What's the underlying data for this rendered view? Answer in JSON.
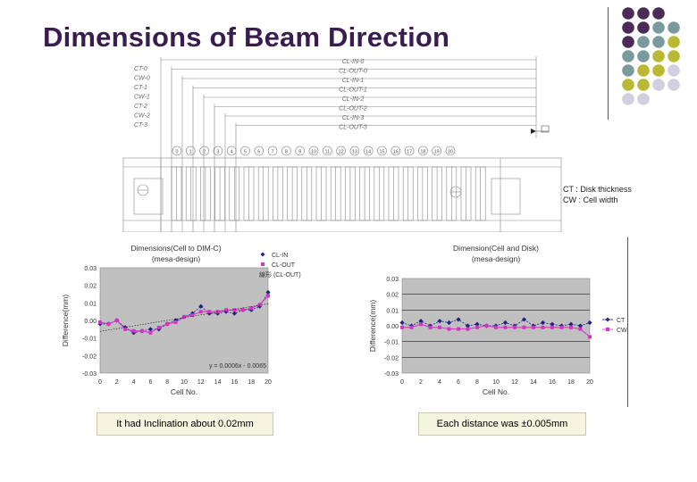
{
  "slide": {
    "title": "Dimensions of Beam Direction",
    "legend_note_1": "CT  : Disk thickness",
    "legend_note_2": "CW : Cell width",
    "caption_left": "It had Inclination about 0.02mm",
    "caption_right": "Each distance was ±0.005mm"
  },
  "drawing": {
    "left_labels": [
      "CT-0",
      "CW-0",
      "CT-1",
      "CW-1",
      "CT-2",
      "CW-2",
      "CT-3"
    ],
    "center_labels": [
      "CL-IN-0",
      "CL-OUT-0",
      "CL-IN-1",
      "CL-OUT-1",
      "CL-IN-2",
      "CL-OUT-2",
      "CL-IN-3",
      "CL-OUT-3"
    ],
    "cell_numbers": [
      "0",
      "1",
      "2",
      "3",
      "4",
      "5",
      "6",
      "7",
      "8",
      "9",
      "10",
      "11",
      "12",
      "13",
      "14",
      "15",
      "16",
      "17",
      "18",
      "19",
      "20"
    ]
  },
  "colors": {
    "title": "#3a1d4f",
    "plot_bg": "#c0c0c0",
    "series_blue": "#1a237e",
    "series_magenta": "#d633c8",
    "dot_purple": "#4b2c57",
    "dot_teal": "#7a9a9e",
    "dot_olive": "#b9b933",
    "dot_lavender": "#d0d0e0"
  },
  "chart_data": [
    {
      "type": "line",
      "title": "Dimensions(Cell to DIM-C)",
      "subtitle": "(mesa-design)",
      "xlabel": "Cell No.",
      "ylabel": "Difference(mm)",
      "x": [
        0,
        1,
        2,
        3,
        4,
        5,
        6,
        7,
        8,
        9,
        10,
        11,
        12,
        13,
        14,
        15,
        16,
        17,
        18,
        19,
        20
      ],
      "xticks": [
        "0",
        "2",
        "4",
        "6",
        "8",
        "10",
        "12",
        "14",
        "16",
        "18",
        "20"
      ],
      "yticks": [
        "0.03",
        "0.02",
        "0.01",
        "0.00",
        "-0.01",
        "-0.02",
        "-0.03"
      ],
      "ylim": [
        -0.03,
        0.03
      ],
      "series": [
        {
          "name": "CL-IN",
          "marker": "diamond",
          "values": [
            -0.002,
            -0.002,
            0.0,
            -0.004,
            -0.007,
            -0.006,
            -0.005,
            -0.005,
            -0.002,
            0.0,
            0.002,
            0.004,
            0.008,
            0.004,
            0.004,
            0.005,
            0.004,
            0.006,
            0.006,
            0.008,
            0.016
          ]
        },
        {
          "name": "CL-OUT",
          "marker": "square",
          "values": [
            -0.001,
            -0.002,
            0.0,
            -0.005,
            -0.006,
            -0.006,
            -0.007,
            -0.004,
            -0.002,
            -0.001,
            0.002,
            0.003,
            0.005,
            0.005,
            0.005,
            0.006,
            0.006,
            0.006,
            0.007,
            0.009,
            0.014
          ]
        }
      ],
      "trendline_label": "線形 (CL-OUT)",
      "trendline_equation": "y = 0.0006x - 0.0065",
      "legend": "top-right"
    },
    {
      "type": "line",
      "title": "Dimension(Cell and Disk)",
      "subtitle": "(mesa-design)",
      "xlabel": "Cell No.",
      "ylabel": "Difference(mm)",
      "x": [
        0,
        1,
        2,
        3,
        4,
        5,
        6,
        7,
        8,
        9,
        10,
        11,
        12,
        13,
        14,
        15,
        16,
        17,
        18,
        19,
        20
      ],
      "xticks": [
        "0",
        "2",
        "4",
        "6",
        "8",
        "10",
        "12",
        "14",
        "16",
        "18",
        "20"
      ],
      "yticks": [
        "0.03",
        "0.02",
        "0.01",
        "0.00",
        "-0.01",
        "-0.02",
        "-0.03"
      ],
      "ylim": [
        -0.03,
        0.03
      ],
      "series": [
        {
          "name": "CT",
          "marker": "diamond",
          "values": [
            0.002,
            0.0,
            0.003,
            0.0,
            0.003,
            0.002,
            0.004,
            0.0,
            0.001,
            0.0,
            0.0,
            0.002,
            0.0,
            0.004,
            0.0,
            0.002,
            0.001,
            0.0,
            0.001,
            0.0,
            0.002
          ]
        },
        {
          "name": "CW",
          "marker": "square",
          "values": [
            -0.001,
            -0.001,
            0.001,
            -0.001,
            -0.001,
            -0.002,
            -0.002,
            -0.002,
            -0.001,
            0.0,
            -0.001,
            -0.001,
            -0.001,
            -0.001,
            -0.001,
            -0.001,
            -0.001,
            -0.001,
            -0.001,
            -0.002,
            -0.007
          ]
        }
      ],
      "gridlines": [
        0.02,
        0.01,
        -0.01,
        -0.02
      ],
      "legend": "right"
    }
  ]
}
